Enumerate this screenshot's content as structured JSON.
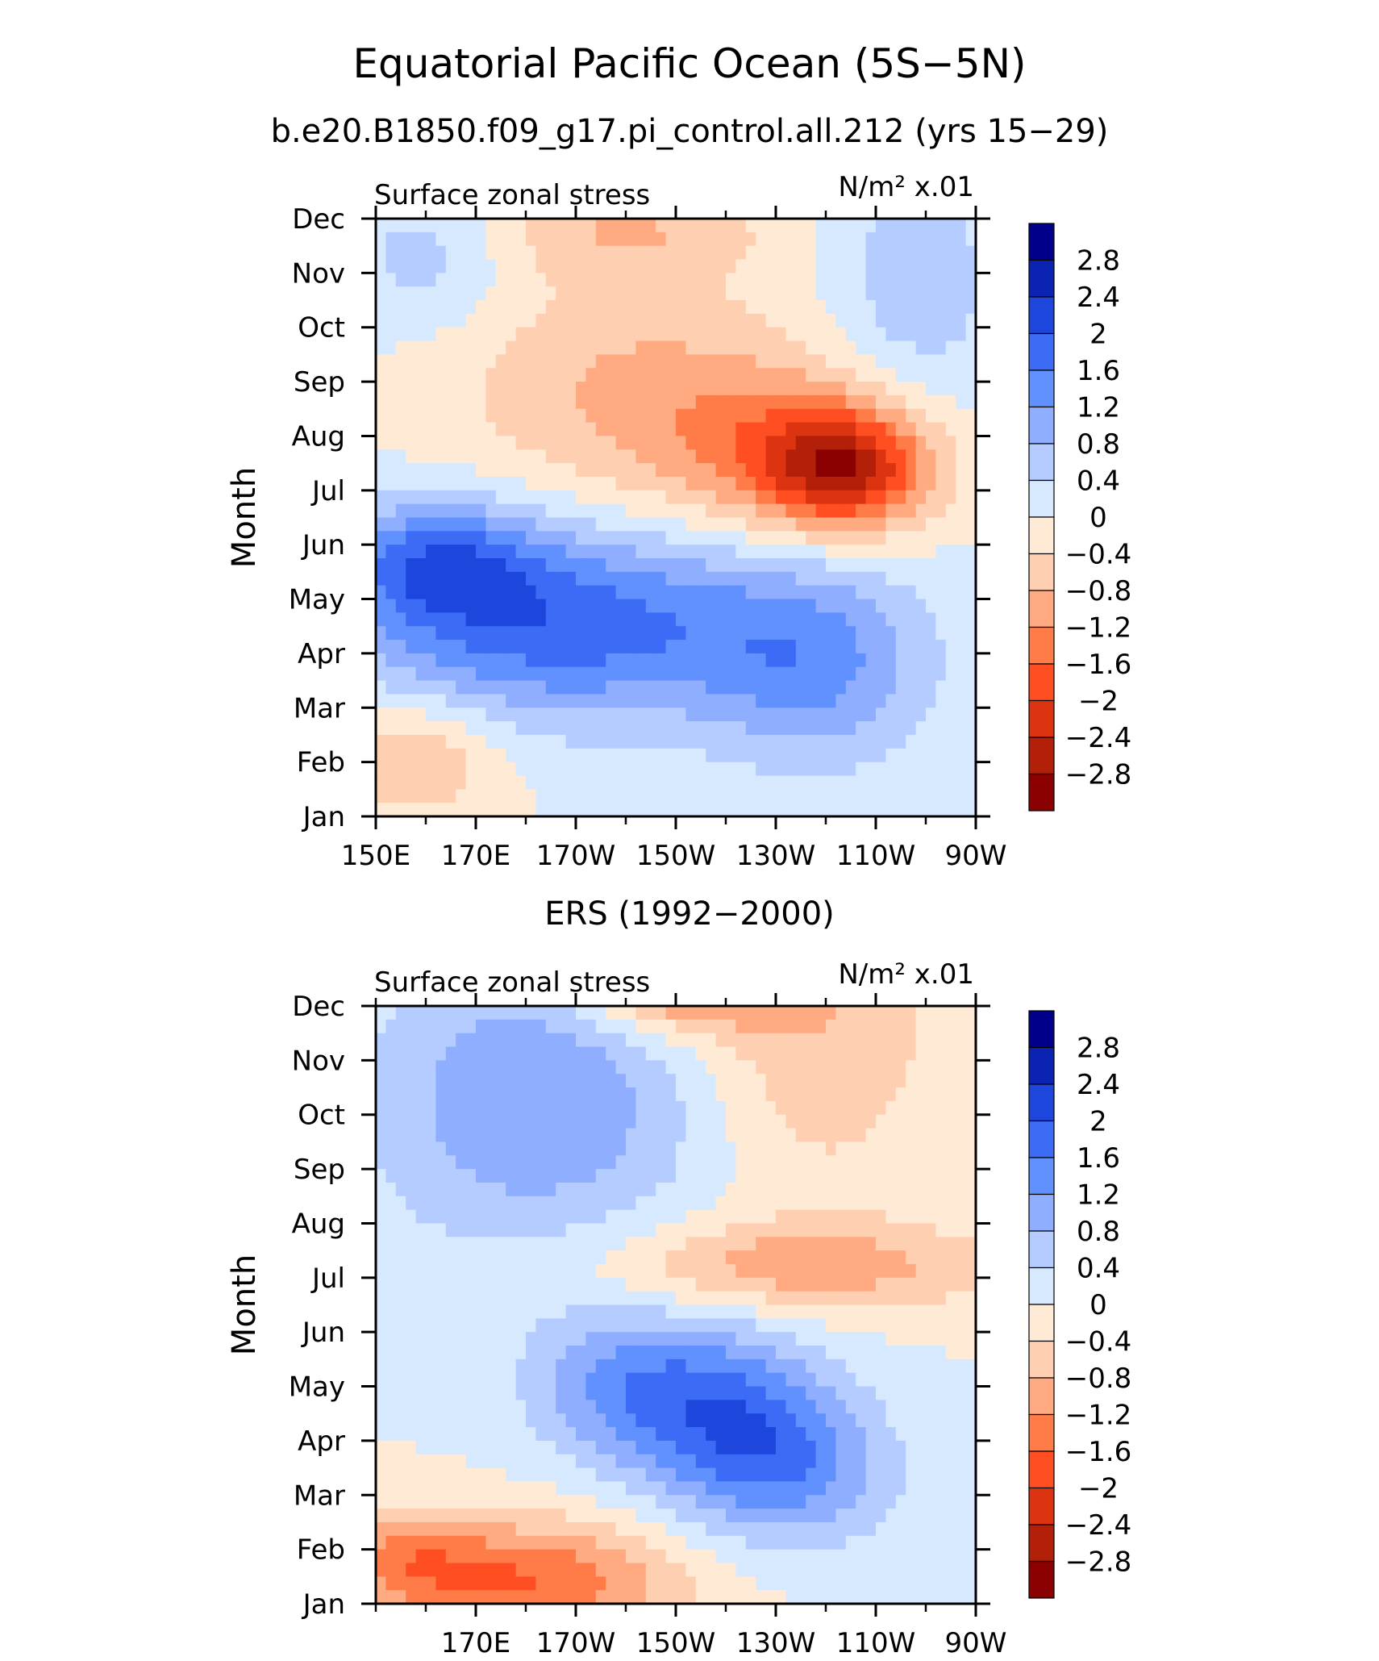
{
  "figure": {
    "title": "Equatorial Pacific Ocean (5S−5N)",
    "subtitle": "b.e20.B1850.f09_g17.pi_control.all.212 (yrs 15−29)"
  },
  "chart_data": [
    {
      "type": "heatmap",
      "panel_title": "",
      "left_label": "Surface zonal stress",
      "units": "N/m² x.01",
      "ylabel": "Month",
      "xlim": [
        150,
        270
      ],
      "xtick_values": [
        150,
        170,
        190,
        210,
        230,
        250,
        270
      ],
      "xtick_labels": [
        "150E",
        "170E",
        "170W",
        "150W",
        "130W",
        "110W",
        "90W"
      ],
      "ytick_labels": [
        "Jan",
        "Feb",
        "Mar",
        "Apr",
        "May",
        "Jun",
        "Jul",
        "Aug",
        "Sep",
        "Oct",
        "Nov",
        "Dec"
      ],
      "contour_levels": [
        -2.8,
        -2.4,
        -2.0,
        -1.6,
        -1.2,
        -0.8,
        -0.4,
        0,
        0.4,
        0.8,
        1.2,
        1.6,
        2.0,
        2.4,
        2.8
      ],
      "colorbar_labels": [
        "2.8",
        "2.4",
        "2",
        "1.6",
        "1.2",
        "0.8",
        "0.4",
        "0",
        "−0.4",
        "−0.8",
        "−1.2",
        "−1.6",
        "−2",
        "−2.4",
        "−2.8"
      ],
      "colorbar_colors": [
        "#8b0000",
        "#b2200a",
        "#dc3410",
        "#ff4e21",
        "#ff7c48",
        "#ffaa80",
        "#ffcfb1",
        "#ffead6",
        "#d7e9ff",
        "#b4ccff",
        "#8faeff",
        "#6190ff",
        "#3c6cf5",
        "#1d46dc",
        "#0a23b2",
        "#00008b"
      ],
      "field_features": [
        {
          "lon": 162,
          "month": 4.7,
          "amp": 1.4,
          "slon": 14,
          "smon": 0.8
        },
        {
          "lon": 180,
          "month": 3.5,
          "amp": 1.2,
          "slon": 28,
          "smon": 1.3
        },
        {
          "lon": 238,
          "month": 2.7,
          "amp": 1.1,
          "slon": 16,
          "smon": 1.3
        },
        {
          "lon": 202,
          "month": 3.6,
          "amp": 0.8,
          "slon": 30,
          "smon": 1.2
        },
        {
          "lon": 244,
          "month": 6.4,
          "amp": -2.3,
          "slon": 12,
          "smon": 0.8
        },
        {
          "lon": 228,
          "month": 6.8,
          "amp": -0.9,
          "slon": 18,
          "smon": 1.1
        },
        {
          "lon": 200,
          "month": 7.9,
          "amp": -0.8,
          "slon": 25,
          "smon": 1.6
        },
        {
          "lon": 158,
          "month": 1.1,
          "amp": -0.9,
          "slon": 12,
          "smon": 0.8
        },
        {
          "lon": 258,
          "month": 9.8,
          "amp": 0.7,
          "slon": 12,
          "smon": 1.6
        },
        {
          "lon": 160,
          "month": 10.3,
          "amp": 0.6,
          "slon": 12,
          "smon": 1.0
        },
        {
          "lon": 200,
          "month": 10.8,
          "amp": -0.7,
          "slon": 20,
          "smon": 0.6
        }
      ]
    },
    {
      "type": "heatmap",
      "panel_title": "ERS (1992−2000)",
      "left_label": "Surface zonal stress",
      "units": "N/m² x.01",
      "ylabel": "Month",
      "xlim": [
        150,
        270
      ],
      "xtick_values": [
        170,
        190,
        210,
        230,
        250,
        270
      ],
      "xtick_labels": [
        "170E",
        "170W",
        "150W",
        "130W",
        "110W",
        "90W"
      ],
      "ytick_labels": [
        "Jan",
        "Feb",
        "Mar",
        "Apr",
        "May",
        "Jun",
        "Jul",
        "Aug",
        "Sep",
        "Oct",
        "Nov",
        "Dec"
      ],
      "contour_levels": [
        -2.8,
        -2.4,
        -2.0,
        -1.6,
        -1.2,
        -0.8,
        -0.4,
        0,
        0.4,
        0.8,
        1.2,
        1.6,
        2.0,
        2.4,
        2.8
      ],
      "colorbar_labels": [
        "2.8",
        "2.4",
        "2",
        "1.6",
        "1.2",
        "0.8",
        "0.4",
        "0",
        "−0.4",
        "−0.8",
        "−1.2",
        "−1.6",
        "−2",
        "−2.4",
        "−2.8"
      ],
      "colorbar_colors": [
        "#8b0000",
        "#b2200a",
        "#dc3410",
        "#ff4e21",
        "#ff7c48",
        "#ffaa80",
        "#ffcfb1",
        "#ffead6",
        "#d7e9ff",
        "#b4ccff",
        "#8faeff",
        "#6190ff",
        "#3c6cf5",
        "#1d46dc",
        "#0a23b2",
        "#00008b"
      ],
      "field_features": [
        {
          "lon": 222,
          "month": 3.3,
          "amp": 1.5,
          "slon": 14,
          "smon": 1.2
        },
        {
          "lon": 200,
          "month": 4.0,
          "amp": 1.2,
          "slon": 14,
          "smon": 1.0
        },
        {
          "lon": 236,
          "month": 2.4,
          "amp": 0.9,
          "slon": 14,
          "smon": 1.0
        },
        {
          "lon": 188,
          "month": 9.5,
          "amp": 0.9,
          "slon": 22,
          "smon": 2.0
        },
        {
          "lon": 170,
          "month": 9.0,
          "amp": 0.4,
          "slon": 22,
          "smon": 2.0
        },
        {
          "lon": 180,
          "month": 0.4,
          "amp": -1.6,
          "slon": 22,
          "smon": 0.8
        },
        {
          "lon": 156,
          "month": 0.9,
          "amp": -0.8,
          "slon": 10,
          "smon": 0.6
        },
        {
          "lon": 234,
          "month": 6.2,
          "amp": -1.1,
          "slon": 28,
          "smon": 0.6
        },
        {
          "lon": 210,
          "month": 11.4,
          "amp": -1.4,
          "slon": 14,
          "smon": 0.6
        },
        {
          "lon": 238,
          "month": 9.6,
          "amp": -0.6,
          "slon": 16,
          "smon": 1.6
        },
        {
          "lon": 230,
          "month": 11.2,
          "amp": -0.4,
          "slon": 26,
          "smon": 1.0
        }
      ]
    }
  ]
}
